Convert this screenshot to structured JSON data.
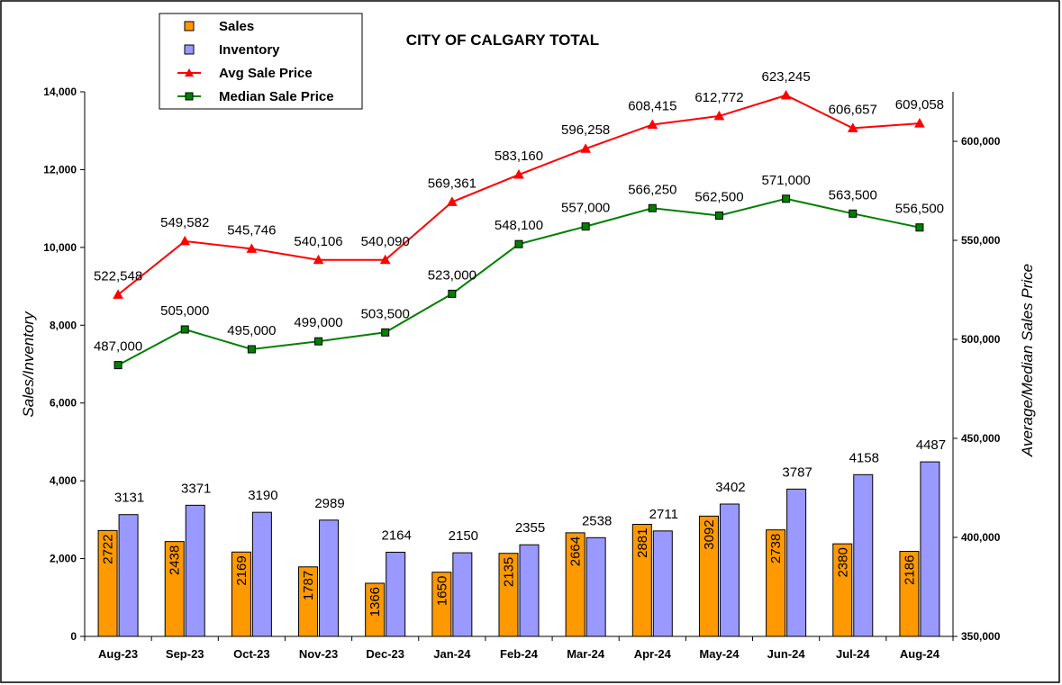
{
  "chart_data": {
    "type": "bar",
    "title": "CITY OF CALGARY TOTAL",
    "ylabel": "Sales/Inventory",
    "y2label": "Average/Median Sales Price",
    "ylim": [
      0,
      14000
    ],
    "y2lim": [
      350000,
      625000
    ],
    "yticks": [
      "0",
      "2,000",
      "4,000",
      "6,000",
      "8,000",
      "10,000",
      "12,000",
      "14,000"
    ],
    "y2ticks": [
      "350,000",
      "400,000",
      "450,000",
      "500,000",
      "550,000",
      "600,000"
    ],
    "legend_position": "top-left",
    "categories": [
      "Aug-23",
      "Sep-23",
      "Oct-23",
      "Nov-23",
      "Dec-23",
      "Jan-24",
      "Feb-24",
      "Mar-24",
      "Apr-24",
      "May-24",
      "Jun-24",
      "Jul-24",
      "Aug-24"
    ],
    "series": [
      {
        "name": "Sales",
        "type": "bar",
        "axis": "left",
        "color": "#FF9900",
        "values": [
          2722,
          2438,
          2169,
          1787,
          1366,
          1650,
          2135,
          2664,
          2881,
          3092,
          2738,
          2380,
          2186
        ],
        "labels": [
          "2722",
          "2438",
          "2169",
          "1787",
          "1366",
          "1650",
          "2135",
          "2664",
          "2881",
          "3092",
          "2738",
          "2380",
          "2186"
        ]
      },
      {
        "name": "Inventory",
        "type": "bar",
        "axis": "left",
        "color": "#9999FF",
        "values": [
          3131,
          3371,
          3190,
          2989,
          2164,
          2150,
          2355,
          2538,
          2711,
          3402,
          3787,
          4158,
          4487
        ],
        "labels": [
          "3131",
          "3371",
          "3190",
          "2989",
          "2164",
          "2150",
          "2355",
          "2538",
          "2711",
          "3402",
          "3787",
          "4158",
          "4487"
        ]
      },
      {
        "name": "Avg Sale Price",
        "type": "line",
        "axis": "right",
        "color": "#FF0000",
        "marker": "triangle",
        "values": [
          522548,
          549582,
          545746,
          540106,
          540090,
          569361,
          583160,
          596258,
          608415,
          612772,
          623245,
          606657,
          609058
        ],
        "labels": [
          "522,548",
          "549,582",
          "545,746",
          "540,106",
          "540,090",
          "569,361",
          "583,160",
          "596,258",
          "608,415",
          "612,772",
          "623,245",
          "606,657",
          "609,058"
        ]
      },
      {
        "name": "Median Sale Price",
        "type": "line",
        "axis": "right",
        "color": "#008000",
        "marker": "square",
        "values": [
          487000,
          505000,
          495000,
          499000,
          503500,
          523000,
          548100,
          557000,
          566250,
          562500,
          571000,
          563500,
          556500
        ],
        "labels": [
          "487,000",
          "505,000",
          "495,000",
          "499,000",
          "503,500",
          "523,000",
          "548,100",
          "557,000",
          "566,250",
          "562,500",
          "571,000",
          "563,500",
          "556,500"
        ]
      }
    ]
  }
}
